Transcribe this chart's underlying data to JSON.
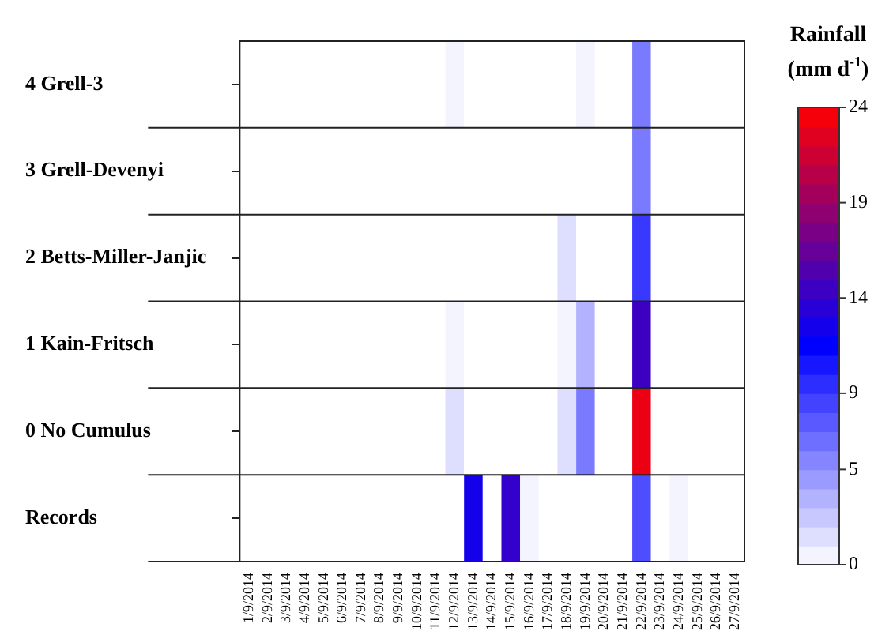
{
  "chart_data": {
    "type": "heatmap",
    "clabel": "Rainfall (mm d$^{-1}$)",
    "categories": [
      "1/9/2014",
      "2/9/2014",
      "3/9/2014",
      "4/9/2014",
      "5/9/2014",
      "6/9/2014",
      "7/9/2014",
      "8/9/2014",
      "9/9/2014",
      "10/9/2014",
      "11/9/2014",
      "12/9/2014",
      "13/9/2014",
      "14/9/2014",
      "15/9/2014",
      "16/9/2014",
      "17/9/2014",
      "18/9/2014",
      "19/9/2014",
      "20/9/2014",
      "21/9/2014",
      "22/9/2014",
      "23/9/2014",
      "24/9/2014",
      "25/9/2014",
      "26/9/2014",
      "27/9/2014"
    ],
    "y_categories": [
      "4 Grell-3",
      "3 Grell-Devenyi",
      "2 Betts-Miller-Janjic",
      "1 Kain-Fritsch",
      "0 No Cumulus",
      "Records"
    ],
    "cells": [
      [
        0,
        0,
        0,
        0,
        0,
        0,
        0,
        0,
        0,
        0,
        0,
        0.5,
        0,
        0,
        0,
        0,
        0,
        0,
        0.5,
        0,
        0,
        6,
        0,
        0,
        0,
        0,
        0
      ],
      [
        0,
        0,
        0,
        0,
        0,
        0,
        0,
        0,
        0,
        0,
        0,
        0,
        0,
        0,
        0,
        0,
        0,
        0,
        0,
        0,
        0,
        6,
        0,
        0,
        0,
        0,
        0
      ],
      [
        0,
        0,
        0,
        0,
        0,
        0,
        0,
        0,
        0,
        0,
        0,
        0,
        0,
        0,
        0,
        0,
        0,
        1.5,
        0,
        0,
        0,
        9,
        0,
        0,
        0,
        0,
        0
      ],
      [
        0,
        0,
        0,
        0,
        0,
        0,
        0,
        0,
        0,
        0,
        0,
        0.5,
        0,
        0,
        0,
        0,
        0,
        0.5,
        3.5,
        0,
        0,
        14.5,
        0,
        0,
        0,
        0,
        0
      ],
      [
        0,
        0,
        0,
        0,
        0,
        0,
        0,
        0,
        0,
        0,
        0,
        1.5,
        0,
        0,
        0,
        0,
        0,
        1.5,
        6,
        0,
        0,
        23,
        0,
        0,
        0,
        0,
        0
      ],
      [
        0,
        0,
        0,
        0,
        0,
        0,
        0,
        0,
        0,
        0,
        0,
        0,
        12.5,
        0,
        14,
        0.5,
        0,
        0,
        0,
        0,
        0,
        8,
        0,
        0.5,
        0,
        0,
        0
      ]
    ],
    "clim": [
      0,
      24
    ],
    "cticks": [
      0,
      5,
      9,
      14,
      19,
      24
    ]
  }
}
